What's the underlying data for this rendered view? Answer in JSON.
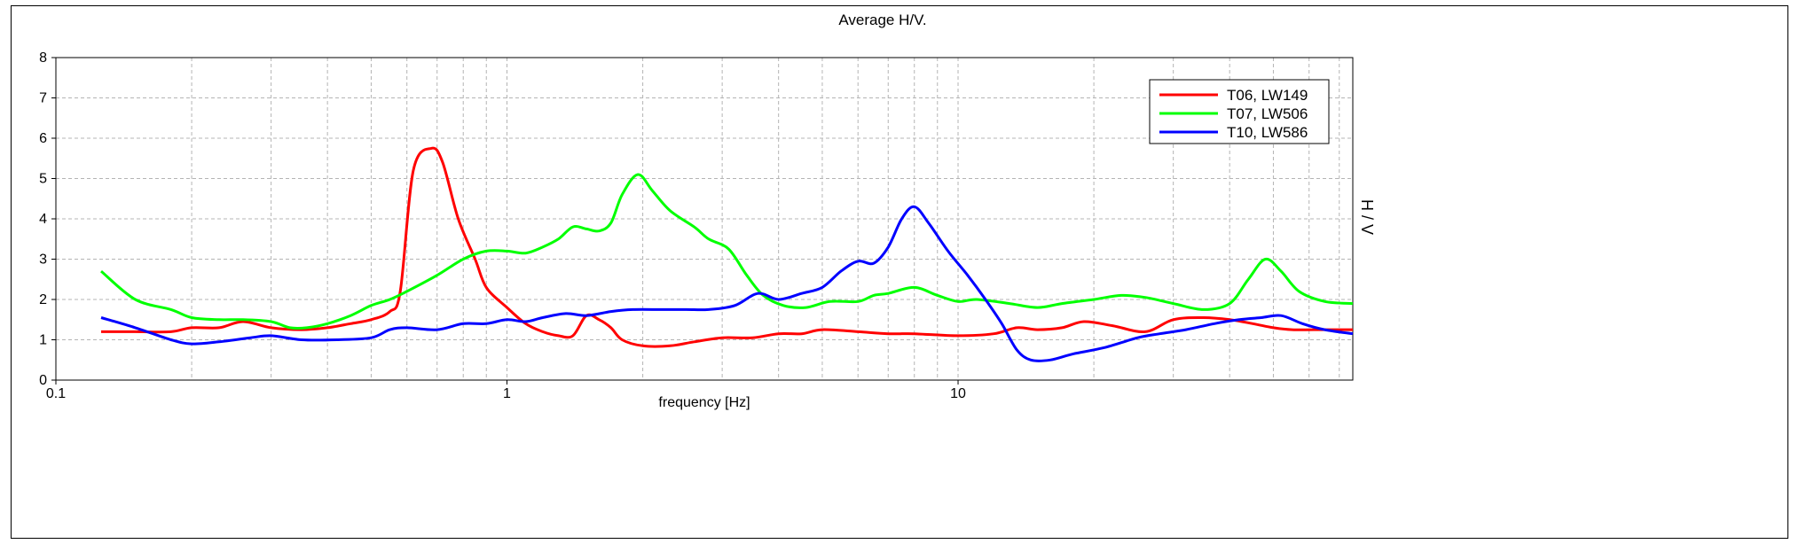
{
  "chart_data": {
    "type": "line",
    "title": "Average H/V.",
    "xlabel": "frequency [Hz]",
    "ylabel": "H / V",
    "x_scale": "log",
    "xlim": [
      0.1,
      75
    ],
    "ylim": [
      0,
      8
    ],
    "x_tick_labels": [
      {
        "value": 0.1,
        "label": "0.1"
      },
      {
        "value": 1,
        "label": "1"
      },
      {
        "value": 10,
        "label": "10"
      }
    ],
    "y_ticks": [
      0,
      1,
      2,
      3,
      4,
      5,
      6,
      7,
      8
    ],
    "grid": true,
    "legend_position": "top-right",
    "series": [
      {
        "name": "T06, LW149",
        "color": "#ff0000",
        "points": [
          [
            0.126,
            1.2
          ],
          [
            0.15,
            1.2
          ],
          [
            0.18,
            1.2
          ],
          [
            0.2,
            1.3
          ],
          [
            0.23,
            1.3
          ],
          [
            0.26,
            1.45
          ],
          [
            0.3,
            1.3
          ],
          [
            0.35,
            1.25
          ],
          [
            0.4,
            1.3
          ],
          [
            0.45,
            1.4
          ],
          [
            0.5,
            1.5
          ],
          [
            0.55,
            1.7
          ],
          [
            0.58,
            2.2
          ],
          [
            0.62,
            5.2
          ],
          [
            0.68,
            5.75
          ],
          [
            0.72,
            5.4
          ],
          [
            0.78,
            4.0
          ],
          [
            0.85,
            3.0
          ],
          [
            0.9,
            2.3
          ],
          [
            1.0,
            1.8
          ],
          [
            1.1,
            1.4
          ],
          [
            1.2,
            1.2
          ],
          [
            1.3,
            1.1
          ],
          [
            1.4,
            1.1
          ],
          [
            1.5,
            1.6
          ],
          [
            1.6,
            1.5
          ],
          [
            1.7,
            1.3
          ],
          [
            1.8,
            1.0
          ],
          [
            2.0,
            0.85
          ],
          [
            2.3,
            0.85
          ],
          [
            2.6,
            0.95
          ],
          [
            3.0,
            1.05
          ],
          [
            3.5,
            1.05
          ],
          [
            4.0,
            1.15
          ],
          [
            4.5,
            1.15
          ],
          [
            5.0,
            1.25
          ],
          [
            6.0,
            1.2
          ],
          [
            7.0,
            1.15
          ],
          [
            8.0,
            1.15
          ],
          [
            10.0,
            1.1
          ],
          [
            12.0,
            1.15
          ],
          [
            13.5,
            1.3
          ],
          [
            15.0,
            1.25
          ],
          [
            17.0,
            1.3
          ],
          [
            19.0,
            1.45
          ],
          [
            22.0,
            1.35
          ],
          [
            26.0,
            1.2
          ],
          [
            30.0,
            1.5
          ],
          [
            35.0,
            1.55
          ],
          [
            40.0,
            1.5
          ],
          [
            45.0,
            1.4
          ],
          [
            50.0,
            1.3
          ],
          [
            55.0,
            1.25
          ],
          [
            65.0,
            1.25
          ],
          [
            75.0,
            1.25
          ]
        ]
      },
      {
        "name": "T07, LW506",
        "color": "#00ff00",
        "points": [
          [
            0.126,
            2.7
          ],
          [
            0.15,
            2.0
          ],
          [
            0.18,
            1.75
          ],
          [
            0.2,
            1.55
          ],
          [
            0.23,
            1.5
          ],
          [
            0.26,
            1.5
          ],
          [
            0.3,
            1.45
          ],
          [
            0.33,
            1.3
          ],
          [
            0.36,
            1.3
          ],
          [
            0.4,
            1.4
          ],
          [
            0.45,
            1.6
          ],
          [
            0.5,
            1.85
          ],
          [
            0.55,
            2.0
          ],
          [
            0.6,
            2.2
          ],
          [
            0.7,
            2.6
          ],
          [
            0.8,
            3.0
          ],
          [
            0.9,
            3.2
          ],
          [
            1.0,
            3.2
          ],
          [
            1.1,
            3.15
          ],
          [
            1.2,
            3.3
          ],
          [
            1.3,
            3.5
          ],
          [
            1.4,
            3.8
          ],
          [
            1.5,
            3.75
          ],
          [
            1.6,
            3.7
          ],
          [
            1.7,
            3.9
          ],
          [
            1.8,
            4.6
          ],
          [
            1.95,
            5.1
          ],
          [
            2.1,
            4.7
          ],
          [
            2.3,
            4.2
          ],
          [
            2.6,
            3.8
          ],
          [
            2.8,
            3.5
          ],
          [
            3.1,
            3.25
          ],
          [
            3.4,
            2.6
          ],
          [
            3.7,
            2.1
          ],
          [
            4.1,
            1.85
          ],
          [
            4.6,
            1.8
          ],
          [
            5.2,
            1.95
          ],
          [
            6.0,
            1.95
          ],
          [
            6.5,
            2.1
          ],
          [
            7.0,
            2.15
          ],
          [
            8.0,
            2.3
          ],
          [
            9.0,
            2.1
          ],
          [
            10.0,
            1.95
          ],
          [
            11.0,
            2.0
          ],
          [
            13.0,
            1.9
          ],
          [
            15.0,
            1.8
          ],
          [
            17.0,
            1.9
          ],
          [
            20.0,
            2.0
          ],
          [
            23.0,
            2.1
          ],
          [
            26.0,
            2.05
          ],
          [
            30.0,
            1.9
          ],
          [
            35.0,
            1.75
          ],
          [
            40.0,
            1.9
          ],
          [
            44.0,
            2.5
          ],
          [
            48.0,
            3.0
          ],
          [
            52.0,
            2.7
          ],
          [
            57.0,
            2.2
          ],
          [
            65.0,
            1.95
          ],
          [
            75.0,
            1.9
          ]
        ]
      },
      {
        "name": "T10, LW586",
        "color": "#0000ff",
        "points": [
          [
            0.126,
            1.55
          ],
          [
            0.15,
            1.3
          ],
          [
            0.18,
            1.0
          ],
          [
            0.2,
            0.9
          ],
          [
            0.23,
            0.95
          ],
          [
            0.27,
            1.05
          ],
          [
            0.3,
            1.1
          ],
          [
            0.35,
            1.0
          ],
          [
            0.42,
            1.0
          ],
          [
            0.5,
            1.05
          ],
          [
            0.55,
            1.25
          ],
          [
            0.6,
            1.3
          ],
          [
            0.7,
            1.25
          ],
          [
            0.8,
            1.4
          ],
          [
            0.9,
            1.4
          ],
          [
            1.0,
            1.5
          ],
          [
            1.1,
            1.45
          ],
          [
            1.2,
            1.55
          ],
          [
            1.35,
            1.65
          ],
          [
            1.5,
            1.6
          ],
          [
            1.7,
            1.7
          ],
          [
            1.9,
            1.75
          ],
          [
            2.2,
            1.75
          ],
          [
            2.5,
            1.75
          ],
          [
            2.8,
            1.75
          ],
          [
            3.2,
            1.85
          ],
          [
            3.6,
            2.15
          ],
          [
            4.0,
            2.0
          ],
          [
            4.5,
            2.15
          ],
          [
            5.0,
            2.3
          ],
          [
            5.5,
            2.7
          ],
          [
            6.0,
            2.95
          ],
          [
            6.5,
            2.9
          ],
          [
            7.0,
            3.3
          ],
          [
            7.5,
            4.0
          ],
          [
            8.0,
            4.3
          ],
          [
            8.6,
            3.9
          ],
          [
            9.5,
            3.2
          ],
          [
            10.5,
            2.6
          ],
          [
            11.5,
            2.0
          ],
          [
            12.5,
            1.4
          ],
          [
            13.5,
            0.75
          ],
          [
            14.5,
            0.5
          ],
          [
            16.0,
            0.5
          ],
          [
            18.0,
            0.65
          ],
          [
            21.0,
            0.8
          ],
          [
            25.0,
            1.05
          ],
          [
            28.0,
            1.15
          ],
          [
            32.0,
            1.25
          ],
          [
            37.0,
            1.4
          ],
          [
            42.0,
            1.5
          ],
          [
            47.0,
            1.55
          ],
          [
            52.0,
            1.6
          ],
          [
            58.0,
            1.4
          ],
          [
            65.0,
            1.25
          ],
          [
            75.0,
            1.15
          ]
        ]
      }
    ]
  }
}
